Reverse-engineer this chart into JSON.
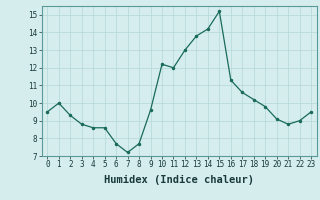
{
  "x": [
    0,
    1,
    2,
    3,
    4,
    5,
    6,
    7,
    8,
    9,
    10,
    11,
    12,
    13,
    14,
    15,
    16,
    17,
    18,
    19,
    20,
    21,
    22,
    23
  ],
  "y": [
    9.5,
    10.0,
    9.3,
    8.8,
    8.6,
    8.6,
    7.7,
    7.2,
    7.7,
    9.6,
    12.2,
    12.0,
    13.0,
    13.8,
    14.2,
    15.2,
    11.3,
    10.6,
    10.2,
    9.8,
    9.1,
    8.8,
    9.0,
    9.5
  ],
  "xlabel": "Humidex (Indice chaleur)",
  "ylim": [
    7,
    15.5
  ],
  "xlim": [
    -0.5,
    23.5
  ],
  "yticks": [
    7,
    8,
    9,
    10,
    11,
    12,
    13,
    14,
    15
  ],
  "xticks": [
    0,
    1,
    2,
    3,
    4,
    5,
    6,
    7,
    8,
    9,
    10,
    11,
    12,
    13,
    14,
    15,
    16,
    17,
    18,
    19,
    20,
    21,
    22,
    23
  ],
  "line_color": "#1a6b5a",
  "marker_color": "#1a6b5a",
  "bg_color": "#d5eded",
  "grid_color": "#b5d8d8",
  "tick_fontsize": 5.5,
  "label_fontsize": 7.5
}
